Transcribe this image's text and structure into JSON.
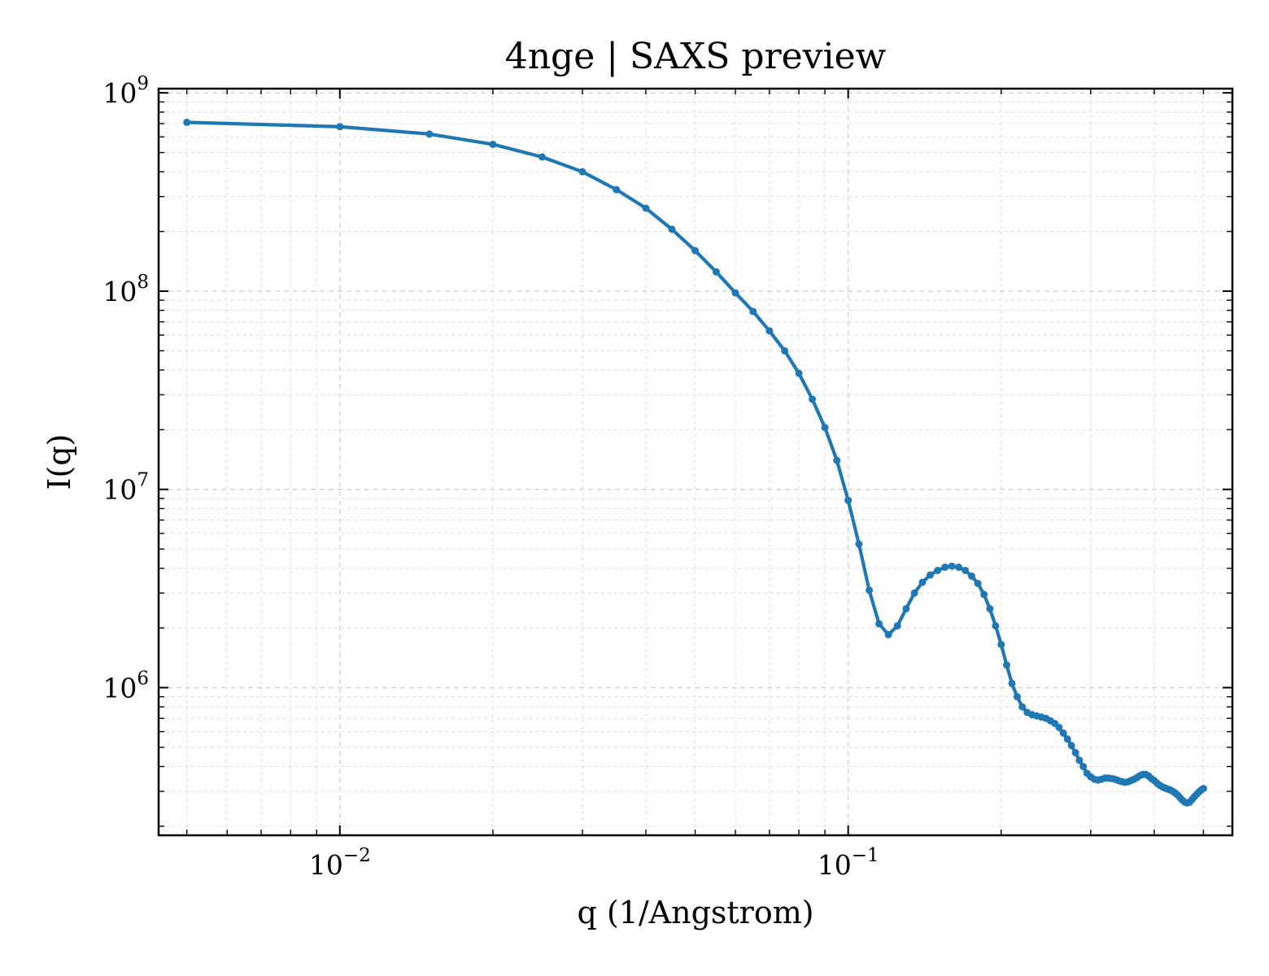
{
  "chart_data": {
    "type": "line",
    "title": "4nge | SAXS preview",
    "xlabel": "q (1/Angstrom)",
    "ylabel": "I(q)",
    "xscale": "log",
    "yscale": "log",
    "xlim": [
      0.0044,
      0.57
    ],
    "ylim": [
      180000.0,
      1050000000.0
    ],
    "grid": true,
    "color": "#1f77b4",
    "xticks": [
      {
        "value": 0.01,
        "base": "10",
        "exp": "−2"
      },
      {
        "value": 0.1,
        "base": "10",
        "exp": "−1"
      }
    ],
    "yticks": [
      {
        "value": 1000000.0,
        "base": "10",
        "exp": "6"
      },
      {
        "value": 10000000.0,
        "base": "10",
        "exp": "7"
      },
      {
        "value": 100000000.0,
        "base": "10",
        "exp": "8"
      },
      {
        "value": 1000000000.0,
        "base": "10",
        "exp": "9"
      }
    ],
    "series": [
      {
        "x": [
          0.005,
          0.01,
          0.015,
          0.02,
          0.025,
          0.03,
          0.035,
          0.04,
          0.045,
          0.05,
          0.055,
          0.06,
          0.065,
          0.07,
          0.075,
          0.08,
          0.085,
          0.09,
          0.095,
          0.1,
          0.105,
          0.11,
          0.115,
          0.12,
          0.125,
          0.13,
          0.135,
          0.14,
          0.145,
          0.15,
          0.155,
          0.16,
          0.165,
          0.17,
          0.175,
          0.18,
          0.185,
          0.19,
          0.195,
          0.2,
          0.205,
          0.21,
          0.215,
          0.22,
          0.225,
          0.23,
          0.235,
          0.24,
          0.245,
          0.25,
          0.255,
          0.26,
          0.265,
          0.27,
          0.275,
          0.28,
          0.285,
          0.29,
          0.295,
          0.3,
          0.305,
          0.31,
          0.315,
          0.32,
          0.325,
          0.33,
          0.335,
          0.34,
          0.345,
          0.35,
          0.355,
          0.36,
          0.365,
          0.37,
          0.375,
          0.38,
          0.385,
          0.39,
          0.395,
          0.4,
          0.405,
          0.41,
          0.415,
          0.42,
          0.425,
          0.43,
          0.435,
          0.44,
          0.445,
          0.45,
          0.455,
          0.46,
          0.465,
          0.47,
          0.475,
          0.48,
          0.485,
          0.49,
          0.495,
          0.5
        ],
        "y": [
          710000000,
          675000000,
          620000000,
          550000000,
          475000000,
          400000000,
          325000000,
          262000000,
          205000000,
          160000000,
          125000000,
          98000000,
          79000000,
          63000000,
          50000000,
          38500000,
          28500000,
          20500000,
          14000000,
          8800000,
          5300000,
          3100000,
          2100000,
          1850000,
          2050000,
          2500000,
          3000000,
          3400000,
          3700000,
          3900000,
          4050000,
          4100000,
          4050000,
          3900000,
          3650000,
          3350000,
          2950000,
          2500000,
          2050000,
          1650000,
          1300000,
          1050000,
          900000,
          800000,
          750000,
          730000,
          720000,
          710000,
          700000,
          680000,
          660000,
          630000,
          590000,
          550000,
          510000,
          470000,
          430000,
          400000,
          370000,
          355000,
          345000,
          342000,
          345000,
          350000,
          350000,
          348000,
          345000,
          340000,
          336000,
          333000,
          335000,
          340000,
          345000,
          352000,
          360000,
          365000,
          365000,
          358000,
          348000,
          340000,
          330000,
          322000,
          316000,
          312000,
          308000,
          305000,
          300000,
          294000,
          287000,
          278000,
          270000,
          264000,
          262000,
          265000,
          273000,
          282000,
          290000,
          298000,
          305000,
          310000
        ]
      }
    ]
  }
}
